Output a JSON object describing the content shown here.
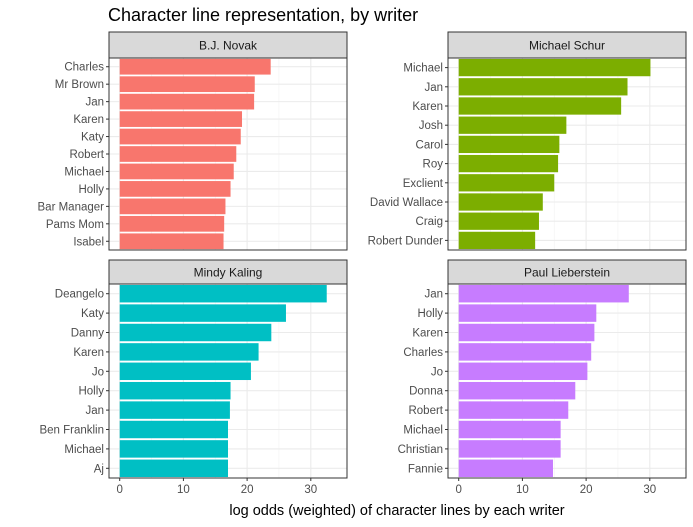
{
  "chart_data": {
    "type": "bar",
    "orientation": "horizontal",
    "title": "Character line representation, by writer",
    "xlabel": "log odds (weighted) of character lines by each writer",
    "ylabel": "",
    "xlim": [
      0,
      34
    ],
    "xticks": [
      0,
      10,
      20,
      30
    ],
    "grid": true,
    "legend": "none",
    "panels": [
      {
        "name": "B.J. Novak",
        "color": "#F8766D",
        "categories": [
          "Charles",
          "Mr Brown",
          "Jan",
          "Karen",
          "Katy",
          "Robert",
          "Michael",
          "Holly",
          "Bar Manager",
          "Pams Mom",
          "Isabel"
        ],
        "values": [
          23.7,
          21.2,
          21.1,
          19.2,
          19.0,
          18.3,
          17.9,
          17.4,
          16.6,
          16.4,
          16.3
        ]
      },
      {
        "name": "Michael Schur",
        "color": "#7CAE00",
        "categories": [
          "Michael",
          "Jan",
          "Karen",
          "Josh",
          "Carol",
          "Roy",
          "Exclient",
          "David Wallace",
          "Craig",
          "Robert Dunder"
        ],
        "values": [
          30.1,
          26.5,
          25.5,
          16.9,
          15.8,
          15.6,
          15.0,
          13.2,
          12.6,
          12.0
        ]
      },
      {
        "name": "Mindy Kaling",
        "color": "#00BFC4",
        "categories": [
          "Deangelo",
          "Katy",
          "Danny",
          "Karen",
          "Jo",
          "Holly",
          "Jan",
          "Ben Franklin",
          "Michael",
          "Aj"
        ],
        "values": [
          32.5,
          26.1,
          23.8,
          21.8,
          20.6,
          17.4,
          17.3,
          17.0,
          17.0,
          17.0
        ]
      },
      {
        "name": "Paul Lieberstein",
        "color": "#C77CFF",
        "categories": [
          "Jan",
          "Holly",
          "Karen",
          "Charles",
          "Jo",
          "Donna",
          "Robert",
          "Michael",
          "Christian",
          "Fannie"
        ],
        "values": [
          26.7,
          21.6,
          21.3,
          20.8,
          20.2,
          18.3,
          17.2,
          16.0,
          16.0,
          14.8
        ]
      }
    ]
  }
}
